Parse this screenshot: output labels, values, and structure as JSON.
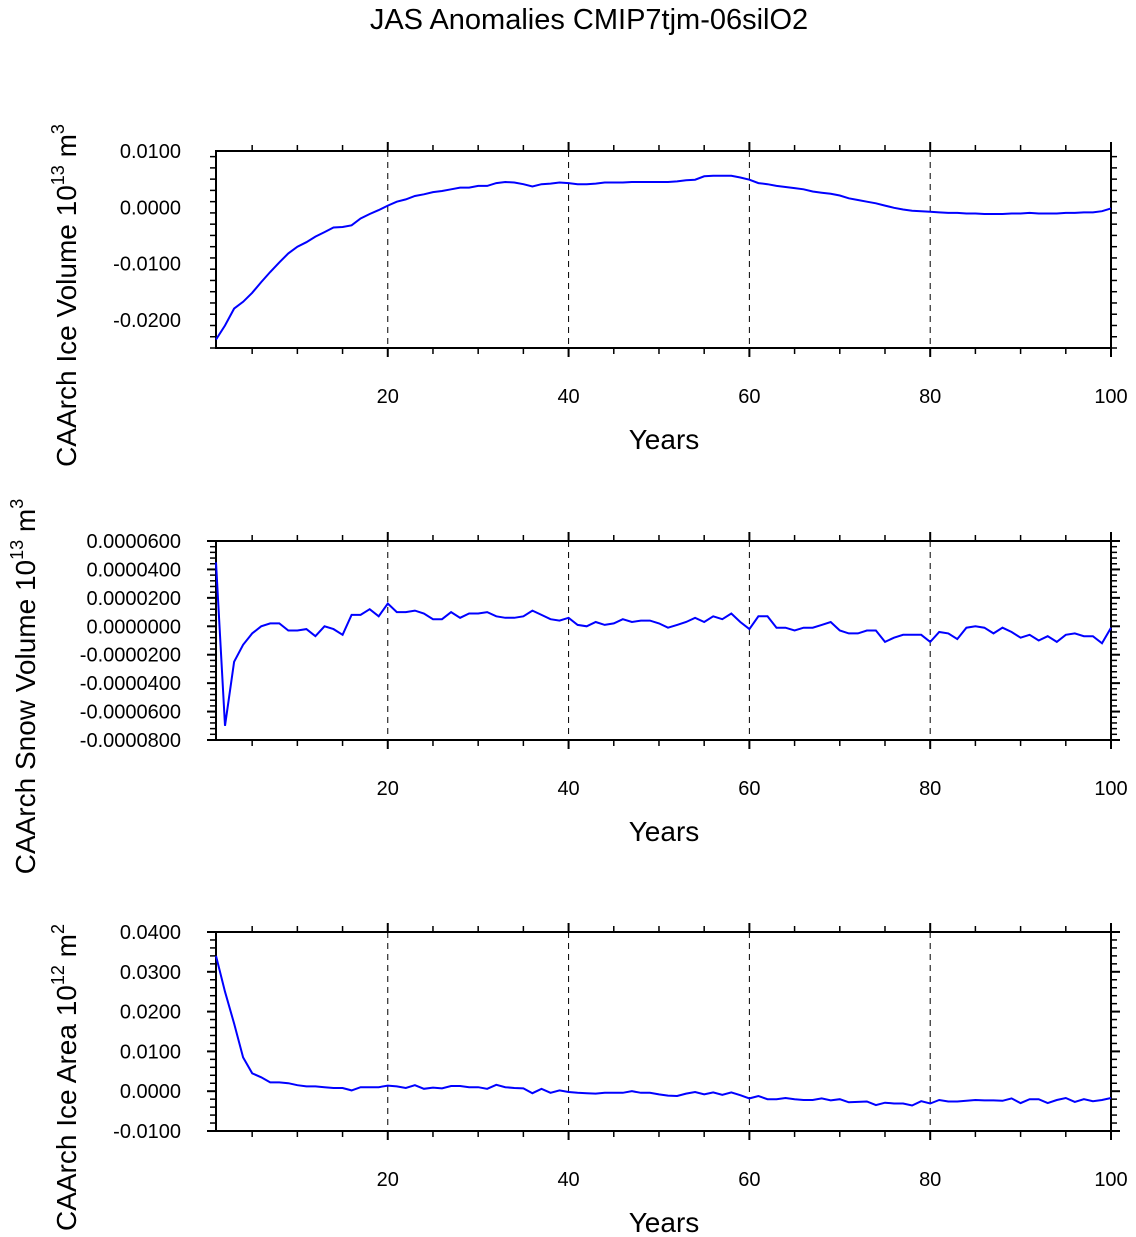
{
  "title": "JAS Anomalies CMIP7tjm-06silO2",
  "colors": {
    "line": "#0000ff",
    "axis": "#000000"
  },
  "chart_data": [
    {
      "type": "line",
      "title": "JAS Anomalies CMIP7tjm-06silO2",
      "xlabel": "Years",
      "ylabel": {
        "text": "CAArch Ice Volume 10",
        "exp": "13",
        "unit": " m",
        "unit_exp": "3"
      },
      "xlim": [
        1,
        100
      ],
      "ylim": [
        -0.025,
        0.01
      ],
      "xticks": [
        20,
        40,
        60,
        80,
        100
      ],
      "xtick_labels": [
        "20",
        "40",
        "60",
        "80",
        "100"
      ],
      "yticks": [
        0.01,
        0.0,
        -0.01,
        -0.02
      ],
      "ytick_labels": [
        "0.0100",
        "0.0000",
        "-0.0100",
        "-0.0200"
      ],
      "grid": "dashed vertical at major x ticks",
      "values": [
        -0.0235,
        -0.021,
        -0.018,
        -0.0168,
        -0.0152,
        -0.0133,
        -0.0115,
        -0.0098,
        -0.0082,
        -0.007,
        -0.0062,
        -0.0052,
        -0.0044,
        -0.0036,
        -0.0035,
        -0.0032,
        -0.002,
        -0.0012,
        -0.0005,
        0.0003,
        0.001,
        0.0014,
        0.002,
        0.0023,
        0.0027,
        0.0029,
        0.0032,
        0.0035,
        0.0035,
        0.0038,
        0.0038,
        0.0043,
        0.0045,
        0.0044,
        0.0041,
        0.0037,
        0.0041,
        0.0042,
        0.0044,
        0.0043,
        0.0041,
        0.0041,
        0.0042,
        0.0044,
        0.0044,
        0.0044,
        0.0045,
        0.0045,
        0.0045,
        0.0045,
        0.0045,
        0.0046,
        0.0048,
        0.0049,
        0.0055,
        0.0056,
        0.0056,
        0.0056,
        0.0053,
        0.0049,
        0.0043,
        0.0041,
        0.0038,
        0.0036,
        0.0034,
        0.0032,
        0.0028,
        0.0026,
        0.0024,
        0.0021,
        0.0016,
        0.0013,
        0.001,
        0.0007,
        0.0003,
        -0.0001,
        -0.0004,
        -0.0006,
        -0.0007,
        -0.0008,
        -0.0009,
        -0.001,
        -0.001,
        -0.0011,
        -0.0011,
        -0.0012,
        -0.0012,
        -0.0012,
        -0.0011,
        -0.0011,
        -0.001,
        -0.0011,
        -0.0011,
        -0.0011,
        -0.001,
        -0.001,
        -0.0009,
        -0.0009,
        -0.0007,
        -0.0002
      ]
    },
    {
      "type": "line",
      "xlabel": "Years",
      "ylabel": {
        "text": "CAArch Snow Volume 10",
        "exp": "13",
        "unit": " m",
        "unit_exp": "3"
      },
      "xlim": [
        1,
        100
      ],
      "ylim": [
        -8e-05,
        6e-05
      ],
      "xticks": [
        20,
        40,
        60,
        80,
        100
      ],
      "xtick_labels": [
        "20",
        "40",
        "60",
        "80",
        "100"
      ],
      "yticks": [
        6e-05,
        4e-05,
        2e-05,
        0.0,
        -2e-05,
        -4e-05,
        -6e-05,
        -8e-05
      ],
      "ytick_labels": [
        "0.0000600",
        "0.0000400",
        "0.0000200",
        "0.0000000",
        "-0.0000200",
        "-0.0000400",
        "-0.0000600",
        "-0.0000800"
      ],
      "grid": "dashed vertical at major x ticks",
      "values": [
        4.5e-05,
        -7e-05,
        -2.5e-05,
        -1.3e-05,
        -5e-06,
        0,
        2e-06,
        2e-06,
        -3e-06,
        -3e-06,
        -2e-06,
        -7e-06,
        0,
        -2e-06,
        -6e-06,
        8e-06,
        8e-06,
        1.2e-05,
        7e-06,
        1.6e-05,
        1e-05,
        1e-05,
        1.1e-05,
        9e-06,
        5e-06,
        5e-06,
        1e-05,
        6e-06,
        9e-06,
        9e-06,
        1e-05,
        7e-06,
        6e-06,
        6e-06,
        7e-06,
        1.1e-05,
        8e-06,
        5e-06,
        4e-06,
        6e-06,
        1e-06,
        0,
        3e-06,
        1e-06,
        2e-06,
        5e-06,
        3e-06,
        4e-06,
        4e-06,
        2e-06,
        -1e-06,
        1e-06,
        3e-06,
        6e-06,
        3e-06,
        7e-06,
        5e-06,
        9e-06,
        3e-06,
        -2e-06,
        7e-06,
        7e-06,
        -1e-06,
        -1e-06,
        -3e-06,
        -1e-06,
        -1e-06,
        1e-06,
        3e-06,
        -3e-06,
        -5e-06,
        -5e-06,
        -3e-06,
        -3e-06,
        -1.1e-05,
        -8e-06,
        -6e-06,
        -6e-06,
        -6e-06,
        -1.1e-05,
        -4e-06,
        -5e-06,
        -9e-06,
        -1e-06,
        0,
        -1e-06,
        -5e-06,
        -1e-06,
        -4e-06,
        -8e-06,
        -6e-06,
        -1e-05,
        -7e-06,
        -1.1e-05,
        -6e-06,
        -5e-06,
        -7e-06,
        -7e-06,
        -1.2e-05,
        -1e-06
      ]
    },
    {
      "type": "line",
      "xlabel": "Years",
      "ylabel": {
        "text": "CAArch Ice Area 10",
        "exp": "12",
        "unit": " m",
        "unit_exp": "2"
      },
      "xlim": [
        1,
        100
      ],
      "ylim": [
        -0.01,
        0.04
      ],
      "xticks": [
        20,
        40,
        60,
        80,
        100
      ],
      "xtick_labels": [
        "20",
        "40",
        "60",
        "80",
        "100"
      ],
      "yticks": [
        0.04,
        0.03,
        0.02,
        0.01,
        0.0,
        -0.01
      ],
      "ytick_labels": [
        "0.0400",
        "0.0300",
        "0.0200",
        "0.0100",
        "0.0000",
        "-0.0100"
      ],
      "grid": "dashed vertical at major x ticks",
      "values": [
        0.034,
        0.025,
        0.017,
        0.0085,
        0.0045,
        0.0035,
        0.0022,
        0.0022,
        0.002,
        0.0015,
        0.0012,
        0.0012,
        0.001,
        0.0008,
        0.0008,
        0.0002,
        0.001,
        0.001,
        0.001,
        0.0014,
        0.0012,
        0.0008,
        0.0015,
        0.0006,
        0.0009,
        0.0007,
        0.0013,
        0.0013,
        0.001,
        0.001,
        0.0006,
        0.0016,
        0.001,
        0.0008,
        0.0007,
        -0.0005,
        0.0006,
        -0.0004,
        0.0002,
        -0.0002,
        -0.0004,
        -0.0005,
        -0.0006,
        -0.0004,
        -0.0004,
        -0.0004,
        0.0,
        -0.0004,
        -0.0004,
        -0.0008,
        -0.0011,
        -0.0012,
        -0.0006,
        -0.0002,
        -0.0008,
        -0.0003,
        -0.0009,
        -0.0003,
        -0.001,
        -0.0018,
        -0.0012,
        -0.002,
        -0.002,
        -0.0017,
        -0.002,
        -0.0022,
        -0.0022,
        -0.0018,
        -0.0023,
        -0.002,
        -0.0028,
        -0.0027,
        -0.0026,
        -0.0035,
        -0.0029,
        -0.0031,
        -0.0031,
        -0.0036,
        -0.0025,
        -0.0031,
        -0.0022,
        -0.0026,
        -0.0026,
        -0.0024,
        -0.0022,
        -0.0023,
        -0.0023,
        -0.0024,
        -0.0018,
        -0.003,
        -0.002,
        -0.002,
        -0.003,
        -0.0022,
        -0.0017,
        -0.0027,
        -0.002,
        -0.0025,
        -0.0022,
        -0.0017
      ]
    }
  ]
}
